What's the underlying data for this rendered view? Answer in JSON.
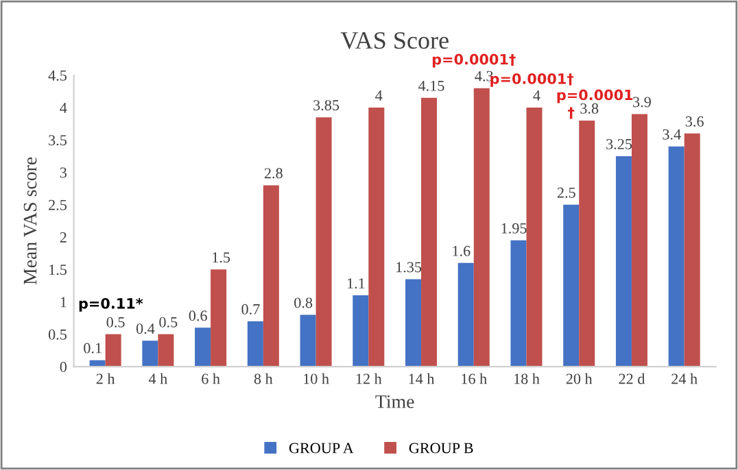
{
  "chart_data": {
    "type": "bar",
    "title": "VAS Score",
    "xlabel": "Time",
    "ylabel": "Mean VAS score",
    "categories": [
      "2 h",
      "4 h",
      "6 h",
      "8 h",
      "10 h",
      "12 h",
      "14 h",
      "16 h",
      "18 h",
      "20 h",
      "22 d",
      "24 h"
    ],
    "series": [
      {
        "name": "GROUP A",
        "color": "#4472c4",
        "values": [
          0.1,
          0.4,
          0.6,
          0.7,
          0.8,
          1.1,
          1.35,
          1.6,
          1.95,
          2.5,
          3.25,
          3.4
        ]
      },
      {
        "name": "GROUP B",
        "color": "#c0504d",
        "values": [
          0.5,
          0.5,
          1.5,
          2.8,
          3.85,
          4,
          4.15,
          4.3,
          4,
          3.8,
          3.9,
          3.6
        ]
      }
    ],
    "ylim": [
      0,
      4.5
    ],
    "yticks": [
      0,
      0.5,
      1,
      1.5,
      2,
      2.5,
      3,
      3.5,
      4,
      4.5
    ],
    "data_labels": true,
    "legend": "bottom",
    "grid": false,
    "annotations": [
      "p=0.11*",
      "p=0.0001†",
      "p=0.0001†",
      "p=0.0001",
      "†"
    ]
  }
}
